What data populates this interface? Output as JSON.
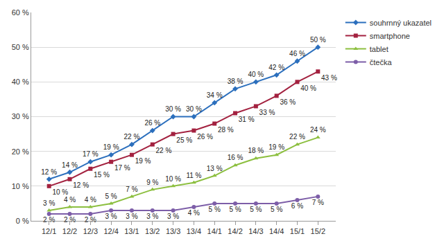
{
  "chart_data": {
    "type": "line",
    "categories": [
      "12/1",
      "12/2",
      "12/3",
      "12/4",
      "13/1",
      "13/2",
      "13/3",
      "13/4",
      "14/1",
      "14/2",
      "14/3",
      "14/4",
      "15/1",
      "15/2"
    ],
    "ylim": [
      0,
      60
    ],
    "yticks": [
      {
        "value": 0,
        "label": "0 %"
      },
      {
        "value": 10,
        "label": "10 %"
      },
      {
        "value": 20,
        "label": "20 %"
      },
      {
        "value": 30,
        "label": "30 %"
      },
      {
        "value": 40,
        "label": "40 %"
      },
      {
        "value": 50,
        "label": "50 %"
      },
      {
        "value": 60,
        "label": "60 %"
      }
    ],
    "grid": true,
    "legend": "right",
    "data_labels": true,
    "series": [
      {
        "name": "souhrnný ukazatel",
        "color": "#2b6fbd",
        "marker": "diamond",
        "line_style": "solid",
        "values": [
          12,
          14,
          17,
          19,
          22,
          26,
          30,
          30,
          34,
          38,
          40,
          42,
          46,
          50
        ],
        "value_labels": [
          "12 %",
          "14 %",
          "17 %",
          "19 %",
          "22 %",
          "26 %",
          "30 %",
          "30 %",
          "34 %",
          "38 %",
          "40 %",
          "42 %",
          "46 %",
          "50 %"
        ]
      },
      {
        "name": "smartphone",
        "color": "#a3213f",
        "marker": "square",
        "line_style": "solid",
        "values": [
          10,
          12,
          15,
          17,
          19,
          22,
          25,
          26,
          28,
          31,
          33,
          36,
          40,
          43
        ],
        "value_labels": [
          "10 %",
          "12 %",
          "15 %",
          "17 %",
          "19 %",
          "22 %",
          "25 %",
          "26 %",
          "28 %",
          "31 %",
          "33 %",
          "36 %",
          "40 %",
          "43 %"
        ]
      },
      {
        "name": "tablet",
        "color": "#8cbf3f",
        "marker": "triangle-up",
        "line_style": "solid",
        "values": [
          3,
          4,
          4,
          5,
          7,
          9,
          10,
          11,
          13,
          16,
          18,
          19,
          22,
          24
        ],
        "value_labels": [
          "3 %",
          "4 %",
          "4 %",
          "5 %",
          "7 %",
          "9 %",
          "10 %",
          "11 %",
          "13 %",
          "16 %",
          "18 %",
          "19 %",
          "22 %",
          "24 %"
        ]
      },
      {
        "name": "čtečka",
        "color": "#7d5ea8",
        "marker": "circle",
        "line_style": "solid",
        "values": [
          2,
          2,
          2,
          3,
          3,
          3,
          3,
          4,
          5,
          5,
          5,
          5,
          6,
          7
        ],
        "value_labels": [
          "2 %",
          "2 %",
          "2 %",
          "3 %",
          "3 %",
          "3 %",
          "3 %",
          "4 %",
          "5 %",
          "5 %",
          "5 %",
          "5 %",
          "6 %",
          "7 %"
        ]
      }
    ]
  }
}
